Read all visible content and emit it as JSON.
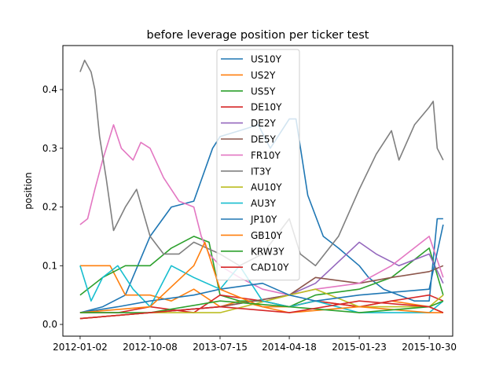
{
  "chart_data": {
    "type": "line",
    "title": "before leverage position per ticker test",
    "xlabel": "",
    "ylabel": "position",
    "x_ticks": [
      "2012-01-02",
      "2012-10-08",
      "2013-07-15",
      "2014-04-18",
      "2015-01-23",
      "2015-10-30"
    ],
    "y_ticks": [
      "0.0",
      "0.1",
      "0.2",
      "0.3",
      "0.4"
    ],
    "x_range": [
      "2011-10-25",
      "2016-02-01"
    ],
    "ylim": [
      -0.02,
      0.475
    ],
    "grid": false,
    "legend_placement": "upper center",
    "series": [
      {
        "name": "US10Y",
        "color": "#1f77b4",
        "points": [
          [
            "2012-01-02",
            0.02
          ],
          [
            "2012-04-01",
            0.03
          ],
          [
            "2012-07-01",
            0.05
          ],
          [
            "2012-10-08",
            0.15
          ],
          [
            "2013-01-01",
            0.2
          ],
          [
            "2013-04-01",
            0.21
          ],
          [
            "2013-06-15",
            0.3
          ],
          [
            "2013-07-15",
            0.32
          ],
          [
            "2013-10-01",
            0.33
          ],
          [
            "2013-12-15",
            0.34
          ],
          [
            "2014-02-01",
            0.3
          ],
          [
            "2014-04-18",
            0.35
          ],
          [
            "2014-05-15",
            0.35
          ],
          [
            "2014-07-01",
            0.22
          ],
          [
            "2014-09-01",
            0.15
          ],
          [
            "2014-11-01",
            0.13
          ],
          [
            "2015-01-23",
            0.1
          ],
          [
            "2015-03-01",
            0.08
          ],
          [
            "2015-05-01",
            0.06
          ],
          [
            "2015-07-01",
            0.05
          ],
          [
            "2015-09-01",
            0.04
          ],
          [
            "2015-10-30",
            0.04
          ],
          [
            "2015-12-01",
            0.18
          ],
          [
            "2015-12-25",
            0.18
          ]
        ]
      },
      {
        "name": "US2Y",
        "color": "#ff7f0e",
        "points": [
          [
            "2012-01-02",
            0.1
          ],
          [
            "2012-03-01",
            0.1
          ],
          [
            "2012-05-01",
            0.1
          ],
          [
            "2012-07-01",
            0.05
          ],
          [
            "2012-10-08",
            0.05
          ],
          [
            "2013-01-01",
            0.04
          ],
          [
            "2013-04-01",
            0.06
          ],
          [
            "2013-07-15",
            0.03
          ],
          [
            "2013-10-01",
            0.04
          ],
          [
            "2014-01-01",
            0.03
          ],
          [
            "2014-04-18",
            0.03
          ],
          [
            "2014-08-01",
            0.04
          ],
          [
            "2015-01-23",
            0.03
          ],
          [
            "2015-06-01",
            0.04
          ],
          [
            "2015-10-30",
            0.03
          ],
          [
            "2015-12-25",
            0.02
          ]
        ]
      },
      {
        "name": "US5Y",
        "color": "#2ca02c",
        "points": [
          [
            "2012-01-02",
            0.05
          ],
          [
            "2012-04-01",
            0.08
          ],
          [
            "2012-07-01",
            0.1
          ],
          [
            "2012-10-08",
            0.1
          ],
          [
            "2013-01-01",
            0.13
          ],
          [
            "2013-04-01",
            0.15
          ],
          [
            "2013-06-01",
            0.14
          ],
          [
            "2013-07-15",
            0.05
          ],
          [
            "2013-10-01",
            0.04
          ],
          [
            "2014-01-01",
            0.04
          ],
          [
            "2014-04-18",
            0.03
          ],
          [
            "2014-08-01",
            0.05
          ],
          [
            "2015-01-23",
            0.06
          ],
          [
            "2015-06-01",
            0.08
          ],
          [
            "2015-10-30",
            0.13
          ],
          [
            "2015-12-25",
            0.05
          ]
        ]
      },
      {
        "name": "DE10Y",
        "color": "#d62728",
        "points": [
          [
            "2012-01-02",
            0.02
          ],
          [
            "2012-06-01",
            0.02
          ],
          [
            "2012-10-08",
            0.03
          ],
          [
            "2013-04-01",
            0.02
          ],
          [
            "2013-07-15",
            0.05
          ],
          [
            "2014-01-01",
            0.04
          ],
          [
            "2014-04-18",
            0.03
          ],
          [
            "2014-08-01",
            0.04
          ],
          [
            "2015-01-23",
            0.03
          ],
          [
            "2015-06-01",
            0.04
          ],
          [
            "2015-10-30",
            0.05
          ],
          [
            "2015-12-25",
            0.04
          ]
        ]
      },
      {
        "name": "DE2Y",
        "color": "#9467bd",
        "points": [
          [
            "2012-01-02",
            0.01
          ],
          [
            "2012-10-08",
            0.02
          ],
          [
            "2013-07-15",
            0.03
          ],
          [
            "2014-04-18",
            0.05
          ],
          [
            "2014-08-01",
            0.07
          ],
          [
            "2015-01-23",
            0.14
          ],
          [
            "2015-04-01",
            0.12
          ],
          [
            "2015-07-01",
            0.1
          ],
          [
            "2015-10-30",
            0.12
          ],
          [
            "2015-12-25",
            0.07
          ]
        ]
      },
      {
        "name": "DE5Y",
        "color": "#8c564b",
        "points": [
          [
            "2012-01-02",
            0.01
          ],
          [
            "2012-10-08",
            0.02
          ],
          [
            "2013-07-15",
            0.03
          ],
          [
            "2014-04-18",
            0.05
          ],
          [
            "2014-08-01",
            0.08
          ],
          [
            "2015-01-23",
            0.07
          ],
          [
            "2015-06-01",
            0.08
          ],
          [
            "2015-10-30",
            0.09
          ],
          [
            "2015-12-25",
            0.1
          ]
        ]
      },
      {
        "name": "FR10Y",
        "color": "#e377c2",
        "points": [
          [
            "2012-01-02",
            0.17
          ],
          [
            "2012-02-01",
            0.18
          ],
          [
            "2012-03-01",
            0.23
          ],
          [
            "2012-04-01",
            0.28
          ],
          [
            "2012-05-15",
            0.34
          ],
          [
            "2012-06-15",
            0.3
          ],
          [
            "2012-08-01",
            0.28
          ],
          [
            "2012-09-01",
            0.31
          ],
          [
            "2012-10-08",
            0.3
          ],
          [
            "2012-12-01",
            0.25
          ],
          [
            "2013-02-01",
            0.21
          ],
          [
            "2013-04-01",
            0.2
          ],
          [
            "2013-05-01",
            0.15
          ],
          [
            "2013-06-01",
            0.12
          ],
          [
            "2013-07-15",
            0.1
          ],
          [
            "2013-10-01",
            0.08
          ],
          [
            "2014-01-01",
            0.06
          ],
          [
            "2014-04-18",
            0.05
          ],
          [
            "2014-08-01",
            0.06
          ],
          [
            "2015-01-23",
            0.07
          ],
          [
            "2015-06-01",
            0.1
          ],
          [
            "2015-10-30",
            0.15
          ],
          [
            "2015-12-25",
            0.08
          ]
        ]
      },
      {
        "name": "IT3Y",
        "color": "#7f7f7f",
        "points": [
          [
            "2012-01-02",
            0.43
          ],
          [
            "2012-01-20",
            0.45
          ],
          [
            "2012-02-15",
            0.43
          ],
          [
            "2012-03-01",
            0.4
          ],
          [
            "2012-03-20",
            0.32
          ],
          [
            "2012-04-15",
            0.25
          ],
          [
            "2012-05-15",
            0.16
          ],
          [
            "2012-07-01",
            0.2
          ],
          [
            "2012-08-15",
            0.23
          ],
          [
            "2012-10-08",
            0.15
          ],
          [
            "2012-12-01",
            0.12
          ],
          [
            "2013-02-01",
            0.12
          ],
          [
            "2013-04-01",
            0.14
          ],
          [
            "2013-07-15",
            0.12
          ],
          [
            "2013-10-01",
            0.1
          ],
          [
            "2014-01-01",
            0.12
          ],
          [
            "2014-04-18",
            0.18
          ],
          [
            "2014-06-01",
            0.12
          ],
          [
            "2014-08-01",
            0.1
          ],
          [
            "2014-11-01",
            0.15
          ],
          [
            "2015-01-23",
            0.23
          ],
          [
            "2015-04-01",
            0.29
          ],
          [
            "2015-06-01",
            0.33
          ],
          [
            "2015-07-01",
            0.28
          ],
          [
            "2015-09-01",
            0.34
          ],
          [
            "2015-10-30",
            0.37
          ],
          [
            "2015-11-15",
            0.38
          ],
          [
            "2015-12-01",
            0.3
          ],
          [
            "2015-12-25",
            0.28
          ]
        ]
      },
      {
        "name": "AU10Y",
        "color": "#bcbd22",
        "points": [
          [
            "2012-01-02",
            0.01
          ],
          [
            "2012-10-08",
            0.02
          ],
          [
            "2013-07-15",
            0.02
          ],
          [
            "2014-04-18",
            0.05
          ],
          [
            "2014-08-01",
            0.06
          ],
          [
            "2015-01-23",
            0.03
          ],
          [
            "2015-10-30",
            0.03
          ],
          [
            "2015-12-25",
            0.05
          ]
        ]
      },
      {
        "name": "AU3Y",
        "color": "#17becf",
        "points": [
          [
            "2012-01-02",
            0.1
          ],
          [
            "2012-02-15",
            0.04
          ],
          [
            "2012-04-01",
            0.08
          ],
          [
            "2012-06-01",
            0.1
          ],
          [
            "2012-08-01",
            0.06
          ],
          [
            "2012-10-08",
            0.03
          ],
          [
            "2013-01-01",
            0.1
          ],
          [
            "2013-04-01",
            0.08
          ],
          [
            "2013-07-15",
            0.06
          ],
          [
            "2013-10-01",
            0.1
          ],
          [
            "2014-01-01",
            0.04
          ],
          [
            "2014-04-18",
            0.03
          ],
          [
            "2014-08-01",
            0.04
          ],
          [
            "2015-01-23",
            0.02
          ],
          [
            "2015-10-30",
            0.02
          ],
          [
            "2015-12-25",
            0.04
          ]
        ]
      },
      {
        "name": "JP10Y",
        "color": "#1f77b4",
        "points": [
          [
            "2012-01-02",
            0.02
          ],
          [
            "2012-06-01",
            0.03
          ],
          [
            "2012-10-08",
            0.04
          ],
          [
            "2013-04-01",
            0.05
          ],
          [
            "2013-07-15",
            0.06
          ],
          [
            "2014-01-01",
            0.07
          ],
          [
            "2014-04-18",
            0.05
          ],
          [
            "2014-08-01",
            0.04
          ],
          [
            "2015-01-23",
            0.05
          ],
          [
            "2015-10-30",
            0.06
          ],
          [
            "2015-12-25",
            0.17
          ]
        ]
      },
      {
        "name": "GB10Y",
        "color": "#ff7f0e",
        "points": [
          [
            "2012-01-02",
            0.02
          ],
          [
            "2012-10-08",
            0.03
          ],
          [
            "2013-04-01",
            0.1
          ],
          [
            "2013-05-15",
            0.14
          ],
          [
            "2013-07-15",
            0.06
          ],
          [
            "2014-01-01",
            0.03
          ],
          [
            "2014-04-18",
            0.02
          ],
          [
            "2015-01-23",
            0.03
          ],
          [
            "2015-10-30",
            0.02
          ],
          [
            "2015-12-25",
            0.02
          ]
        ]
      },
      {
        "name": "KRW3Y",
        "color": "#2ca02c",
        "points": [
          [
            "2012-01-02",
            0.02
          ],
          [
            "2012-10-08",
            0.02
          ],
          [
            "2013-07-15",
            0.04
          ],
          [
            "2014-04-18",
            0.03
          ],
          [
            "2015-01-23",
            0.02
          ],
          [
            "2015-10-30",
            0.03
          ],
          [
            "2015-12-25",
            0.04
          ]
        ]
      },
      {
        "name": "CAD10Y",
        "color": "#d62728",
        "points": [
          [
            "2012-01-02",
            0.01
          ],
          [
            "2012-10-08",
            0.02
          ],
          [
            "2013-07-15",
            0.03
          ],
          [
            "2014-04-18",
            0.02
          ],
          [
            "2015-01-23",
            0.04
          ],
          [
            "2015-10-30",
            0.03
          ],
          [
            "2015-12-25",
            0.02
          ]
        ]
      }
    ]
  }
}
